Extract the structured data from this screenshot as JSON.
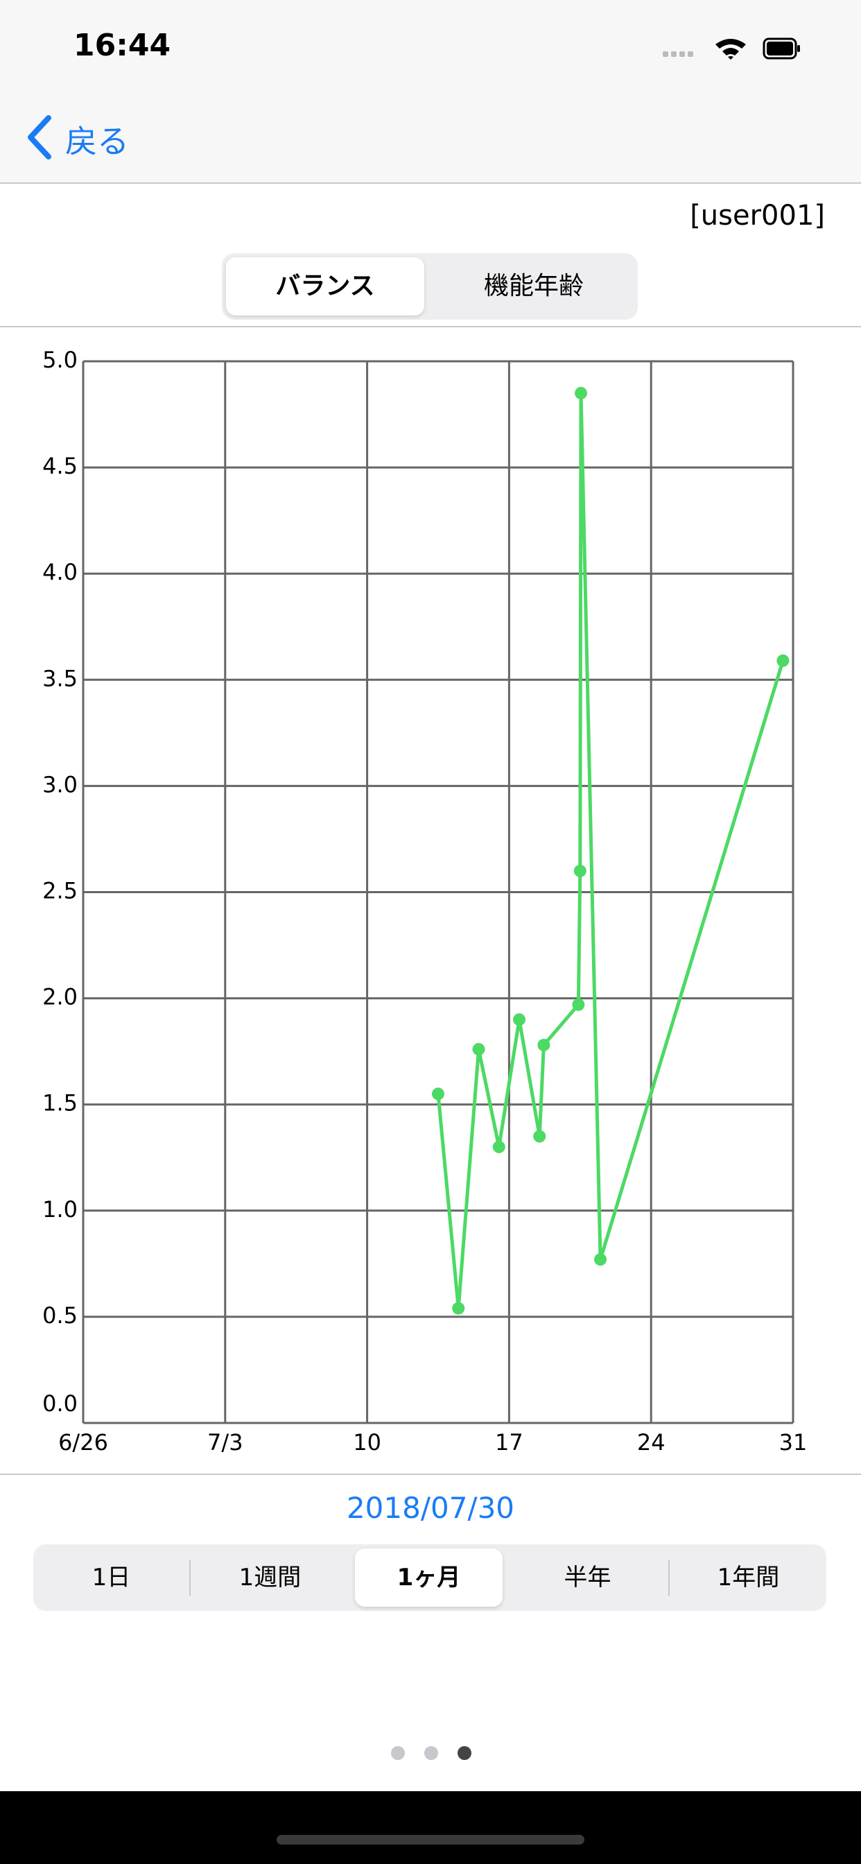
{
  "status": {
    "time": "16:44"
  },
  "nav": {
    "back": "戻る"
  },
  "user": "[user001]",
  "segments": [
    "バランス",
    "機能年齢"
  ],
  "date": "2018/07/30",
  "ranges": [
    "1日",
    "1週間",
    "1ヶ月",
    "半年",
    "1年間"
  ],
  "chart_data": {
    "type": "line",
    "x": [
      "2018-07-13T12:00",
      "2018-07-14T12:00",
      "2018-07-15T12:00",
      "2018-07-16T12:00",
      "2018-07-17T12:00",
      "2018-07-18T12:00",
      "2018-07-18T17:00",
      "2018-07-20T10:00",
      "2018-07-20T12:00",
      "2018-07-20T13:00",
      "2018-07-21T12:00",
      "2018-07-30T12:00"
    ],
    "values": [
      1.55,
      0.54,
      1.76,
      1.3,
      1.9,
      1.35,
      1.78,
      1.97,
      2.6,
      4.85,
      0.77,
      3.59
    ],
    "color": "#4cd964",
    "xlim": [
      "2018-06-26T00:00",
      "2018-07-31T00:00"
    ],
    "xticks": [
      {
        "value": "2018-06-26T00:00",
        "label": "6/26"
      },
      {
        "value": "2018-07-03T00:00",
        "label": "7/3"
      },
      {
        "value": "2018-07-10T00:00",
        "label": "10"
      },
      {
        "value": "2018-07-17T00:00",
        "label": "17"
      },
      {
        "value": "2018-07-24T00:00",
        "label": "24"
      },
      {
        "value": "2018-07-31T00:00",
        "label": "31"
      }
    ],
    "ylim": [
      0,
      5
    ],
    "yticks": [
      {
        "value": 0,
        "label": "0.0"
      },
      0.5,
      {
        "value": 1,
        "label": "1.0"
      },
      1.5,
      {
        "value": 2,
        "label": "2.0"
      },
      2.5,
      {
        "value": 3,
        "label": "3.0"
      },
      3.5,
      {
        "value": 4,
        "label": "4.0"
      },
      4.5,
      {
        "value": 5,
        "label": "5.0"
      }
    ],
    "grid": true
  }
}
